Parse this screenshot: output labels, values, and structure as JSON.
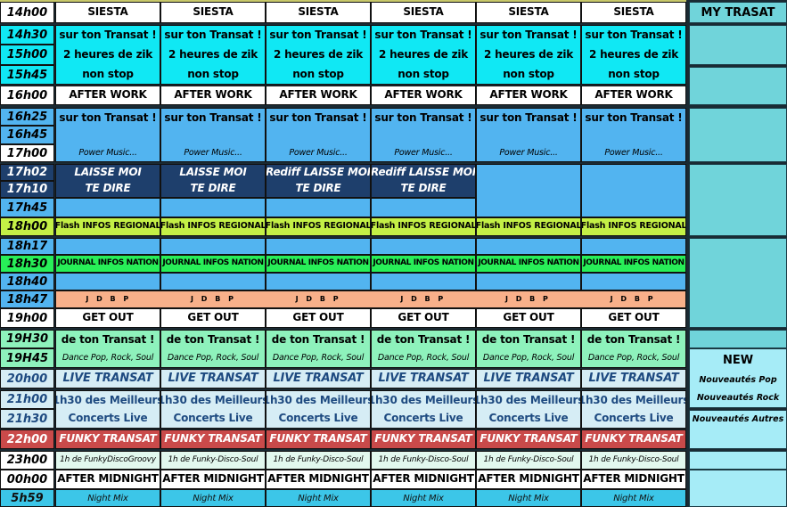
{
  "times": [
    {
      "label": "14h00",
      "style": "white"
    },
    {
      "label": "14h30",
      "style": "cyan"
    },
    {
      "label": "15h00",
      "style": "cyan"
    },
    {
      "label": "15h45",
      "style": "cyan"
    },
    {
      "label": "16h00",
      "style": "white"
    },
    {
      "label": "16h25",
      "style": "blue"
    },
    {
      "label": "16h45",
      "style": "blue"
    },
    {
      "label": "17h00",
      "style": "white"
    },
    {
      "label": "17h02",
      "style": "navy"
    },
    {
      "label": "17h10",
      "style": "navy"
    },
    {
      "label": "17h45",
      "style": "blue"
    },
    {
      "label": "18h00",
      "style": "ygreen"
    },
    {
      "label": "18h17",
      "style": "blue"
    },
    {
      "label": "18h30",
      "style": "green"
    },
    {
      "label": "18h40",
      "style": "blue"
    },
    {
      "label": "18h47",
      "style": "blue"
    },
    {
      "label": "19h00",
      "style": "white"
    },
    {
      "label": "19H30",
      "style": "mint"
    },
    {
      "label": "19H45",
      "style": "mint"
    },
    {
      "label": "20h00",
      "style": "light"
    },
    {
      "label": "21h00",
      "style": "light"
    },
    {
      "label": "21h30",
      "style": "light"
    },
    {
      "label": "22h00",
      "style": "red"
    },
    {
      "label": "23h00",
      "style": "white"
    },
    {
      "label": "00h00",
      "style": "white"
    },
    {
      "label": "5h59",
      "style": "night"
    }
  ],
  "blocks": [
    {
      "start": "14h00",
      "end": "14h00",
      "style": "white",
      "lines": [
        "SIESTA"
      ]
    },
    {
      "start": "14h30",
      "end": "15h45",
      "style": "cyan",
      "lines": [
        "sur ton Transat !",
        "2 heures de zik",
        "non stop"
      ]
    },
    {
      "start": "16h00",
      "end": "16h00",
      "style": "white",
      "lines": [
        "AFTER WORK"
      ]
    },
    {
      "start": "16h25",
      "end": "17h00",
      "style": "blue",
      "lines": [
        "sur ton Transat !",
        "",
        "Power Music..."
      ]
    },
    {
      "start": "17h02",
      "end": "17h10",
      "style": "navy",
      "columns": [
        [
          "LAISSE MOI",
          "TE DIRE"
        ],
        [
          "LAISSE MOI",
          "TE DIRE"
        ],
        [
          "Rediff LAISSE MOI",
          "TE DIRE"
        ],
        [
          "Rediff LAISSE MOI",
          "TE DIRE"
        ],
        null,
        null
      ]
    },
    {
      "start": "17h45",
      "end": "17h45",
      "style": "blue",
      "lines": [],
      "merge_empty_above": true
    },
    {
      "start": "18h00",
      "end": "18h00",
      "style": "ygreen",
      "lines": [
        "Flash INFOS REGIONAL"
      ]
    },
    {
      "start": "18h17",
      "end": "18h17",
      "style": "blue",
      "lines": []
    },
    {
      "start": "18h30",
      "end": "18h30",
      "style": "green",
      "lines": [
        "JOURNAL INFOS NATION"
      ]
    },
    {
      "start": "18h40",
      "end": "18h40",
      "style": "blue",
      "lines": []
    },
    {
      "start": "18h47",
      "end": "18h47",
      "style": "peach",
      "lines": [
        "J D B P"
      ]
    },
    {
      "start": "19h00",
      "end": "19h00",
      "style": "white",
      "lines": [
        "GET OUT"
      ]
    },
    {
      "start": "19H30",
      "end": "19H45",
      "style": "mint",
      "lines": [
        "de ton Transat !",
        "Dance Pop, Rock, Soul"
      ]
    },
    {
      "start": "20h00",
      "end": "20h00",
      "style": "light",
      "lines": [
        "LIVE TRANSAT"
      ]
    },
    {
      "start": "21h00",
      "end": "21h30",
      "style": "light",
      "lines": [
        "1h30 des Meilleurs",
        "Concerts Live"
      ]
    },
    {
      "start": "22h00",
      "end": "22h00",
      "style": "red",
      "lines": [
        "FUNKY TRANSAT"
      ]
    },
    {
      "start": "23h00",
      "end": "23h00",
      "style": "pale",
      "columns": [
        [
          "1h de FunkyDiscoGroovy"
        ],
        [
          "1h de Funky-Disco-Soul"
        ],
        [
          "1h de Funky-Disco-Soul"
        ],
        [
          "1h de Funky-Disco-Soul"
        ],
        [
          "1h de Funky-Disco-Soul"
        ],
        [
          "1h de Funky-Disco-Soul"
        ]
      ]
    },
    {
      "start": "00h00",
      "end": "00h00",
      "style": "white",
      "lines": [
        "AFTER MIDNIGHT"
      ]
    },
    {
      "start": "5h59",
      "end": "5h59",
      "style": "night",
      "lines": [
        "Night Mix"
      ]
    }
  ],
  "side": {
    "title": "MY TRASAT",
    "new_title": "NEW",
    "new_items": [
      "Nouveautés Pop",
      "Nouveautés Rock",
      "Nouveautés Autres"
    ]
  },
  "colors": {
    "cyan": "#10e8f4",
    "blue": "#52b4f0",
    "navy": "#1e3f6c",
    "red": "#c94a4a",
    "teal": "#70d4da"
  }
}
